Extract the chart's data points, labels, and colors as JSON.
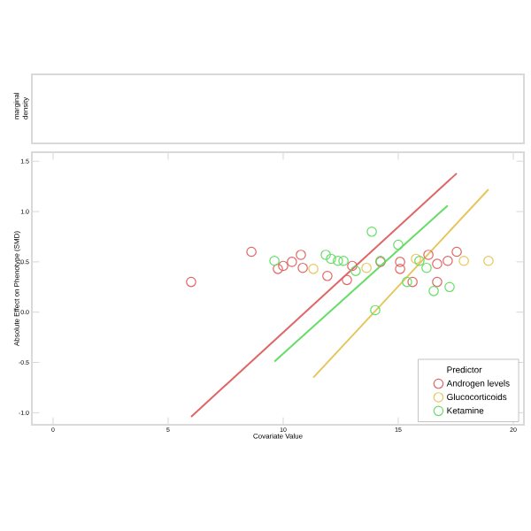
{
  "chart_data": [
    {
      "type": "other",
      "ylabel": "marginal density"
    },
    {
      "type": "scatter",
      "xlabel": "Covariate Value",
      "ylabel": "Absolute Effect on Phenotype (SMD)",
      "legend_title": "Predictor",
      "legend": "bottom right",
      "marker": "circle",
      "xlim": [
        -0.92,
        20.46
      ],
      "ylim": [
        -1.12,
        1.59
      ],
      "xticks": [
        0,
        5,
        10,
        15,
        20
      ],
      "yticks": [
        {
          "value": -1,
          "label": "-1.0"
        },
        {
          "value": -0.5,
          "label": "-0.5"
        },
        {
          "value": 0,
          "label": "0.0"
        },
        {
          "value": 0.5,
          "label": "0.5"
        },
        {
          "value": 1,
          "label": "1.0"
        },
        {
          "value": 1.5,
          "label": "1.5"
        }
      ],
      "series": [
        {
          "name": "Androgen levels",
          "color": "#e06666",
          "x": [
            6.0,
            8.62,
            9.77,
            10.0,
            10.38,
            10.77,
            10.85,
            11.92,
            12.77,
            13.0,
            14.23,
            15.08,
            15.08,
            15.62,
            16.31,
            16.69,
            16.69,
            17.15,
            17.54
          ],
          "values": [
            0.3,
            0.6,
            0.43,
            0.46,
            0.5,
            0.57,
            0.44,
            0.36,
            0.32,
            0.46,
            0.5,
            0.5,
            0.43,
            0.3,
            0.57,
            0.48,
            0.3,
            0.51,
            0.6
          ]
        },
        {
          "name": "Glucocorticoids",
          "color": "#e6c65c",
          "x": [
            11.31,
            13.62,
            15.77,
            17.85,
            18.92
          ],
          "values": [
            0.43,
            0.44,
            0.53,
            0.51,
            0.51
          ]
        },
        {
          "name": "Ketamine",
          "color": "#66dd66",
          "x": [
            9.62,
            11.85,
            12.08,
            12.38,
            12.62,
            13.15,
            13.85,
            14.0,
            14.23,
            15.0,
            15.38,
            15.92,
            16.23,
            16.54,
            17.23
          ],
          "values": [
            0.51,
            0.57,
            0.53,
            0.51,
            0.51,
            0.41,
            0.8,
            0.02,
            0.51,
            0.67,
            0.3,
            0.51,
            0.44,
            0.21,
            0.25
          ]
        },
        {
          "type": "line",
          "marker": "none",
          "color": "#e06666",
          "x": [
            6.0,
            17.54
          ],
          "values": [
            -1.04,
            1.38
          ]
        },
        {
          "type": "line",
          "marker": "none",
          "color": "#e6c65c",
          "x": [
            11.31,
            18.92
          ],
          "values": [
            -0.65,
            1.22
          ]
        },
        {
          "type": "line",
          "marker": "none",
          "color": "#66dd66",
          "x": [
            9.62,
            17.15
          ],
          "values": [
            -0.49,
            1.06
          ]
        }
      ]
    }
  ]
}
